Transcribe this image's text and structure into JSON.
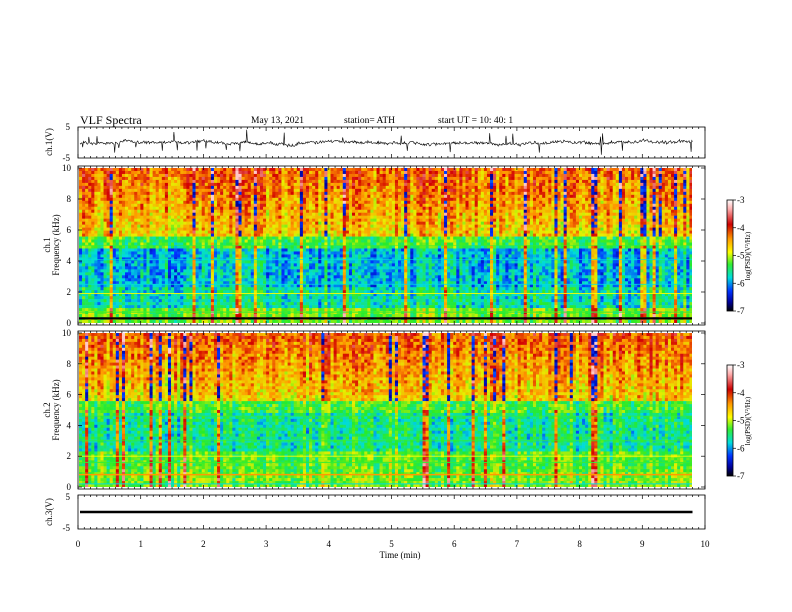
{
  "header": {
    "title": "VLF  Spectra",
    "date": "May 13, 2021",
    "station": "station= ATH",
    "start": "start  UT  =    10: 40: 1"
  },
  "chart_data": [
    {
      "type": "line",
      "panel": "ch1-waveform",
      "ylabel": "ch.1(V)",
      "ylim": [
        -5,
        5
      ],
      "yticks": [
        "5",
        "-5"
      ],
      "trace_level": 0,
      "xlim": [
        0,
        10
      ]
    },
    {
      "type": "heatmap",
      "panel": "ch1-spectrogram",
      "ylabel_channel": "ch.1",
      "ylabel": "Frequency  (kHz)",
      "ylim": [
        0,
        10
      ],
      "yticks": [
        "0",
        "2",
        "4",
        "6",
        "8",
        "10"
      ],
      "xlim": [
        0,
        9.8
      ],
      "colorbar": {
        "label": "log(PSD)(V²/Hz)",
        "range": [
          -7,
          -3
        ],
        "ticks": [
          "-3",
          "-4",
          "-5",
          "-6",
          "-7"
        ]
      }
    },
    {
      "type": "heatmap",
      "panel": "ch2-spectrogram",
      "ylabel_channel": "ch.2",
      "ylabel": "Frequency  (kHz)",
      "ylim": [
        0,
        10
      ],
      "yticks": [
        "0",
        "2",
        "4",
        "6",
        "8",
        "10"
      ],
      "xlim": [
        0,
        9.8
      ],
      "colorbar": {
        "label": "log(PSD)(V²/Hz)",
        "range": [
          -7,
          -3
        ],
        "ticks": [
          "-3",
          "-4",
          "-5",
          "-6",
          "-7"
        ]
      }
    },
    {
      "type": "line",
      "panel": "ch3-waveform",
      "ylabel": "ch.3(V)",
      "ylim": [
        -5,
        5
      ],
      "yticks": [
        "5",
        "-5"
      ],
      "trace_level": 0,
      "xlim": [
        0,
        10
      ]
    }
  ],
  "xaxis": {
    "label": "Time  (min)",
    "ticks": [
      "0",
      "1",
      "2",
      "3",
      "4",
      "5",
      "6",
      "7",
      "8",
      "9",
      "10"
    ],
    "xlim": [
      0,
      10
    ]
  }
}
